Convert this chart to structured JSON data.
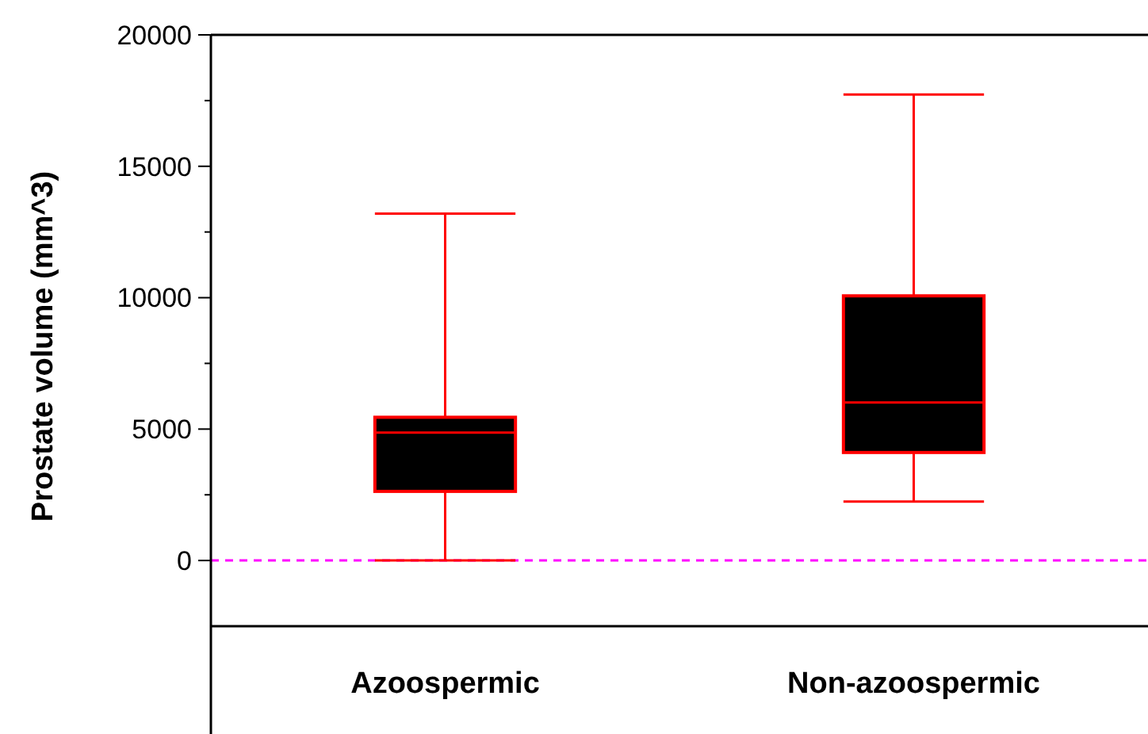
{
  "chart_data": {
    "type": "box",
    "ylabel": "Prostate volume (mm^3)",
    "categories": [
      "Azoospermic",
      "Non-azoospermic"
    ],
    "series": [
      {
        "color": "#ff0000",
        "boxes": [
          {
            "low": 0,
            "q1": 2630,
            "median": 4870,
            "q3": 5450,
            "high": 13200
          },
          {
            "low": 2240,
            "q1": 4110,
            "median": 6010,
            "q3": 10070,
            "high": 17730
          }
        ]
      }
    ],
    "ylim": [
      -2500,
      20000
    ],
    "yticks": [
      0,
      {
        "value": 2500,
        "label": null
      },
      5000,
      {
        "value": 7500,
        "label": null
      },
      10000,
      {
        "value": 12500,
        "label": null
      },
      15000,
      {
        "value": 17500,
        "label": null
      },
      20000
    ],
    "ref_lines": [
      {
        "axis": "y",
        "value": 0,
        "color": "#ff00ff",
        "line_style": "dashed"
      }
    ],
    "grid": false
  }
}
